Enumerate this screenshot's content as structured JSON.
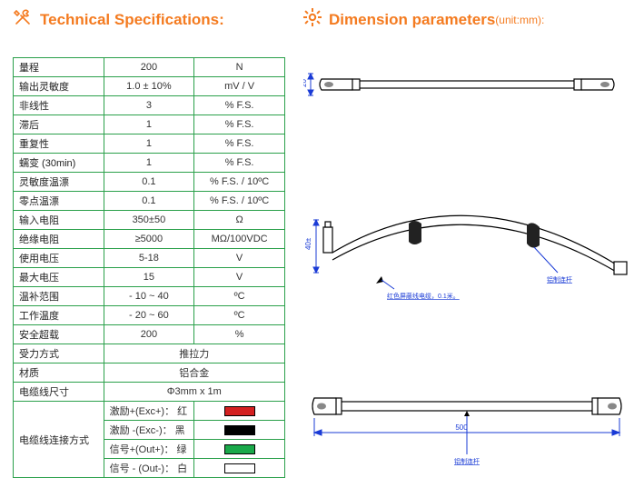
{
  "colors": {
    "accent": "#f47b20",
    "tableBorder": "#2aa04a",
    "dim": "#1a3bd6"
  },
  "headings": {
    "left": "Technical Specifications:",
    "right": "Dimension parameters",
    "rightUnit": "(unit:mm):"
  },
  "specTable": {
    "rows": [
      {
        "label": "量程",
        "value": "200",
        "unit": "N"
      },
      {
        "label": "输出灵敏度",
        "value": "1.0 ± 10%",
        "unit": "mV / V"
      },
      {
        "label": "非线性",
        "value": "3",
        "unit": "% F.S."
      },
      {
        "label": "滞后",
        "value": "1",
        "unit": "% F.S."
      },
      {
        "label": "重复性",
        "value": "1",
        "unit": "% F.S."
      },
      {
        "label": "蠕变 (30min)",
        "value": "1",
        "unit": "% F.S."
      },
      {
        "label": "灵敏度温漂",
        "value": "0.1",
        "unit": "% F.S. / 10ºC"
      },
      {
        "label": "零点温漂",
        "value": "0.1",
        "unit": "% F.S. / 10ºC"
      },
      {
        "label": "输入电阻",
        "value": "350±50",
        "unit": "Ω"
      },
      {
        "label": "绝缘电阻",
        "value": "≥5000",
        "unit": "MΩ/100VDC"
      },
      {
        "label": "使用电压",
        "value": "5-18",
        "unit": "V"
      },
      {
        "label": "最大电压",
        "value": "15",
        "unit": "V"
      },
      {
        "label": "温补范围",
        "value": "- 10 ~ 40",
        "unit": "ºC"
      },
      {
        "label": "工作温度",
        "value": "- 20 ~ 60",
        "unit": "ºC"
      },
      {
        "label": "安全超载",
        "value": "200",
        "unit": "%"
      }
    ],
    "simpleRows": [
      {
        "label": "受力方式",
        "value": "推拉力"
      },
      {
        "label": "材质",
        "value": "铝合金"
      },
      {
        "label": "电缆线尺寸",
        "value": "Φ3mm x 1m"
      }
    ],
    "cable": {
      "groupLabel": "电缆线连接方式",
      "wires": [
        {
          "text": "激励+(Exc+)：",
          "colorName": "红",
          "swatch": "#d32020"
        },
        {
          "text": "激励 -(Exc-)：",
          "colorName": "黑",
          "swatch": "#000000"
        },
        {
          "text": "信号+(Out+)：",
          "colorName": "绿",
          "swatch": "#1aa94a"
        },
        {
          "text": "信号 - (Out-)：",
          "colorName": "白",
          "swatch": "#ffffff"
        }
      ]
    }
  },
  "diagrams": {
    "topDimVert": "20",
    "midCallout1": "红色屏蔽线电缆，0.1米。",
    "midCallout2": "铝制连杆",
    "midDimVert": "40±",
    "bottomDim": "500",
    "bottomCallout": "铝制连杆"
  }
}
